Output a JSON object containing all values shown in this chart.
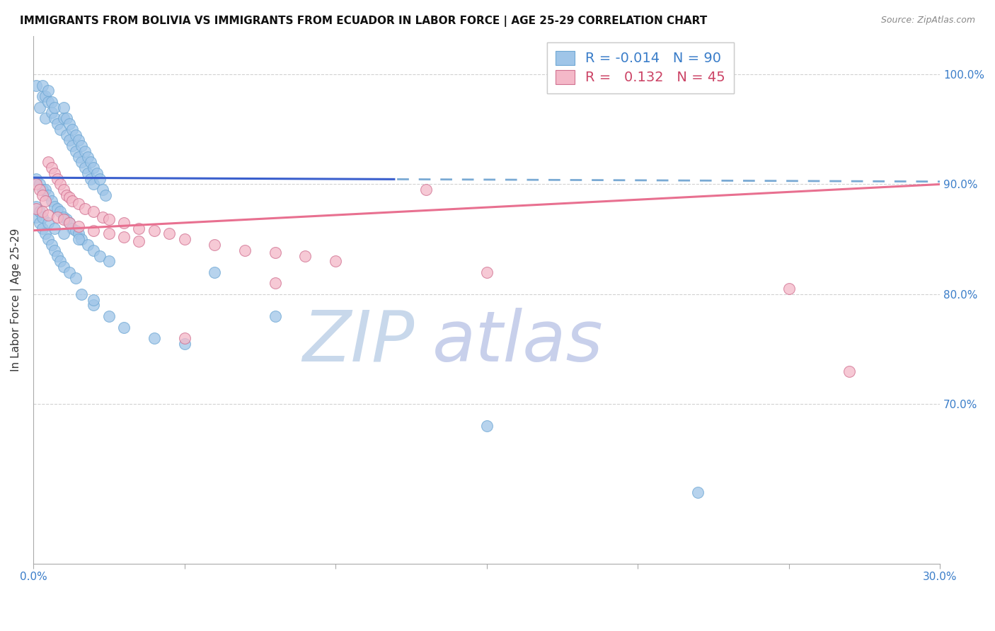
{
  "title": "IMMIGRANTS FROM BOLIVIA VS IMMIGRANTS FROM ECUADOR IN LABOR FORCE | AGE 25-29 CORRELATION CHART",
  "source": "Source: ZipAtlas.com",
  "ylabel": "In Labor Force | Age 25-29",
  "xmin": 0.0,
  "xmax": 0.3,
  "ymin": 0.555,
  "ymax": 1.035,
  "yticks": [
    0.7,
    0.8,
    0.9,
    1.0
  ],
  "xticks": [
    0.0,
    0.05,
    0.1,
    0.15,
    0.2,
    0.25,
    0.3
  ],
  "legend_r_bolivia": "-0.014",
  "legend_n_bolivia": "90",
  "legend_r_ecuador": "0.132",
  "legend_n_ecuador": "45",
  "bolivia_color": "#9fc5e8",
  "ecuador_color": "#f4b8c8",
  "trend_bolivia_solid_color": "#3a5fcd",
  "trend_bolivia_dash_color": "#7aaad4",
  "trend_ecuador_color": "#e87090",
  "bolivia_x": [
    0.001,
    0.002,
    0.003,
    0.003,
    0.004,
    0.004,
    0.005,
    0.005,
    0.006,
    0.006,
    0.007,
    0.007,
    0.008,
    0.009,
    0.01,
    0.01,
    0.011,
    0.011,
    0.012,
    0.012,
    0.013,
    0.013,
    0.014,
    0.014,
    0.015,
    0.015,
    0.016,
    0.016,
    0.017,
    0.017,
    0.018,
    0.018,
    0.019,
    0.019,
    0.02,
    0.02,
    0.021,
    0.022,
    0.023,
    0.024,
    0.001,
    0.002,
    0.003,
    0.004,
    0.005,
    0.006,
    0.007,
    0.008,
    0.009,
    0.01,
    0.011,
    0.012,
    0.013,
    0.014,
    0.015,
    0.016,
    0.018,
    0.02,
    0.022,
    0.025,
    0.001,
    0.002,
    0.003,
    0.004,
    0.005,
    0.006,
    0.007,
    0.008,
    0.009,
    0.01,
    0.012,
    0.014,
    0.016,
    0.02,
    0.025,
    0.03,
    0.04,
    0.05,
    0.06,
    0.08,
    0.001,
    0.002,
    0.003,
    0.005,
    0.007,
    0.01,
    0.015,
    0.02,
    0.15,
    0.22
  ],
  "bolivia_y": [
    0.99,
    0.97,
    0.98,
    0.99,
    0.96,
    0.98,
    0.975,
    0.985,
    0.965,
    0.975,
    0.96,
    0.97,
    0.955,
    0.95,
    0.96,
    0.97,
    0.945,
    0.96,
    0.94,
    0.955,
    0.935,
    0.95,
    0.93,
    0.945,
    0.925,
    0.94,
    0.92,
    0.935,
    0.915,
    0.93,
    0.91,
    0.925,
    0.905,
    0.92,
    0.9,
    0.915,
    0.91,
    0.905,
    0.895,
    0.89,
    0.905,
    0.9,
    0.895,
    0.895,
    0.89,
    0.885,
    0.88,
    0.878,
    0.875,
    0.87,
    0.868,
    0.865,
    0.86,
    0.858,
    0.855,
    0.85,
    0.845,
    0.84,
    0.835,
    0.83,
    0.87,
    0.865,
    0.86,
    0.855,
    0.85,
    0.845,
    0.84,
    0.835,
    0.83,
    0.825,
    0.82,
    0.815,
    0.8,
    0.79,
    0.78,
    0.77,
    0.76,
    0.755,
    0.82,
    0.78,
    0.88,
    0.875,
    0.87,
    0.865,
    0.86,
    0.855,
    0.85,
    0.795,
    0.68,
    0.62
  ],
  "ecuador_x": [
    0.001,
    0.002,
    0.003,
    0.004,
    0.005,
    0.006,
    0.007,
    0.008,
    0.009,
    0.01,
    0.011,
    0.012,
    0.013,
    0.015,
    0.017,
    0.02,
    0.023,
    0.025,
    0.03,
    0.035,
    0.04,
    0.045,
    0.05,
    0.06,
    0.07,
    0.08,
    0.09,
    0.1,
    0.13,
    0.15,
    0.001,
    0.003,
    0.005,
    0.008,
    0.01,
    0.012,
    0.015,
    0.02,
    0.025,
    0.03,
    0.035,
    0.05,
    0.08,
    0.25,
    0.27
  ],
  "ecuador_y": [
    0.9,
    0.895,
    0.89,
    0.885,
    0.92,
    0.915,
    0.91,
    0.905,
    0.9,
    0.895,
    0.89,
    0.888,
    0.885,
    0.882,
    0.878,
    0.875,
    0.87,
    0.868,
    0.865,
    0.86,
    0.858,
    0.855,
    0.85,
    0.845,
    0.84,
    0.838,
    0.835,
    0.83,
    0.895,
    0.82,
    0.878,
    0.875,
    0.872,
    0.87,
    0.868,
    0.865,
    0.862,
    0.858,
    0.855,
    0.852,
    0.848,
    0.76,
    0.81,
    0.805,
    0.73
  ],
  "watermark_zip_color": "#c8d8eb",
  "watermark_atlas_color": "#c8d0eb"
}
